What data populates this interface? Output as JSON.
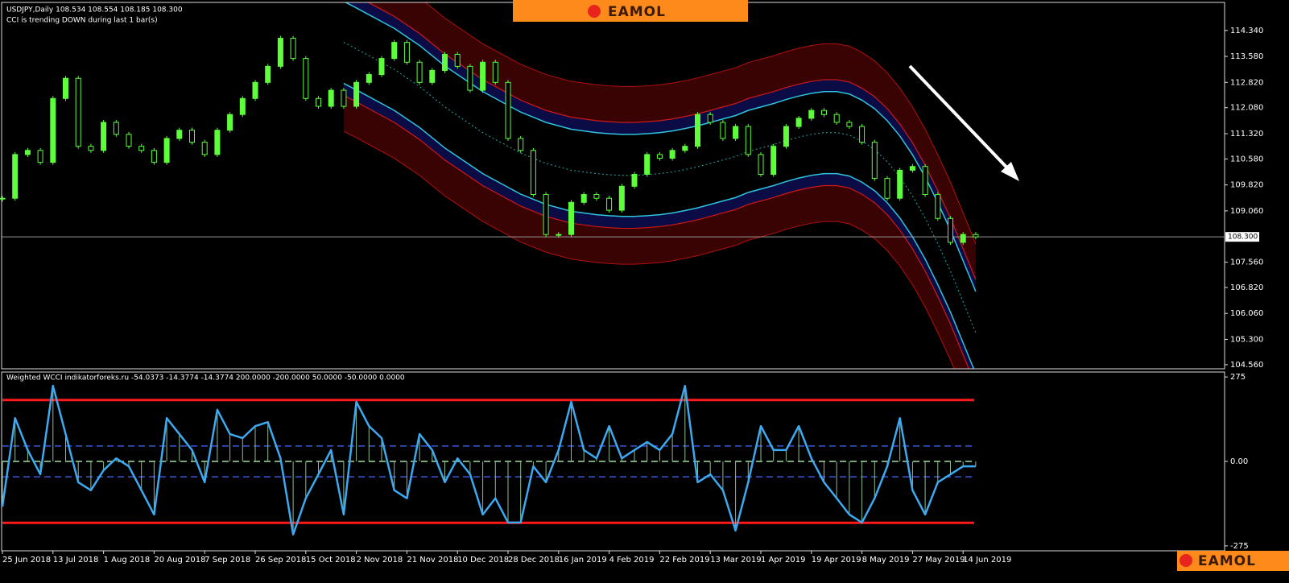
{
  "header": {
    "symbol": "USDJPY,Daily  108.534 108.554 108.185 108.300",
    "signal": "CCI is trending DOWN during last 1 bar(s)"
  },
  "logo": {
    "top": "EAMOL",
    "bottom": "EAMOL"
  },
  "chart_data": [
    {
      "type": "candlestick",
      "color": "#5cff3a",
      "close": [
        109.43,
        110.71,
        110.83,
        110.48,
        112.35,
        112.94,
        110.95,
        110.83,
        111.65,
        111.3,
        110.95,
        110.83,
        110.48,
        111.18,
        111.42,
        111.07,
        110.71,
        111.42,
        111.88,
        112.35,
        112.82,
        113.29,
        114.11,
        113.52,
        112.35,
        112.12,
        112.59,
        112.12,
        112.82,
        113.05,
        113.52,
        113.99,
        113.41,
        112.82,
        113.17,
        113.64,
        113.29,
        112.59,
        113.41,
        112.82,
        111.18,
        110.83,
        109.54,
        108.37,
        108.37,
        109.31,
        109.54,
        109.43,
        109.08,
        109.78,
        110.13,
        110.71,
        110.6,
        110.83,
        110.95,
        111.88,
        111.65,
        111.18,
        111.53,
        110.71,
        110.13,
        110.95,
        111.53,
        111.77,
        112.0,
        111.88,
        111.65,
        111.53,
        111.07,
        110.01,
        109.43,
        110.25,
        110.36,
        109.54,
        108.84,
        108.14,
        108.37,
        108.3
      ],
      "ylim": [
        104.44,
        115.16
      ],
      "yticks": [
        {
          "value": 114.34,
          "label": "114.340"
        },
        {
          "value": 113.58,
          "label": "113.580"
        },
        {
          "value": 112.82,
          "label": "112.820"
        },
        {
          "value": 112.08,
          "label": "112.080"
        },
        {
          "value": 111.32,
          "label": "111.320"
        },
        {
          "value": 110.58,
          "label": "110.580"
        },
        {
          "value": 109.82,
          "label": "109.820"
        },
        {
          "value": 109.06,
          "label": "109.060"
        },
        {
          "value": 107.56,
          "label": "107.560"
        },
        {
          "value": 106.82,
          "label": "106.820"
        },
        {
          "value": 106.06,
          "label": "106.060"
        },
        {
          "value": 105.3,
          "label": "105.300"
        },
        {
          "value": 104.56,
          "label": "104.560"
        }
      ],
      "current_price": {
        "value": 108.3,
        "label": "108.300"
      },
      "channel": {
        "mid": [
          null,
          null,
          null,
          null,
          null,
          null,
          null,
          null,
          null,
          null,
          null,
          null,
          null,
          null,
          null,
          null,
          null,
          null,
          null,
          null,
          null,
          null,
          null,
          null,
          null,
          null,
          null,
          113.99,
          113.8,
          113.6,
          113.4,
          113.2,
          112.95,
          112.7,
          112.4,
          112.1,
          111.85,
          111.6,
          111.35,
          111.15,
          110.95,
          110.75,
          110.6,
          110.45,
          110.35,
          110.25,
          110.2,
          110.15,
          110.12,
          110.1,
          110.1,
          110.12,
          110.15,
          110.2,
          110.27,
          110.35,
          110.45,
          110.55,
          110.65,
          110.8,
          110.9,
          111.0,
          111.12,
          111.22,
          111.3,
          111.35,
          111.35,
          111.28,
          111.1,
          110.85,
          110.5,
          110.05,
          109.5,
          108.85,
          108.1,
          107.3,
          106.4,
          105.5
        ],
        "offsets": [
          1.2,
          1.55,
          2.6
        ]
      }
    },
    {
      "type": "line",
      "title": "Weighted WCCI indikatorforeks.ru -54.0373 -14.3774 -14.3774 200.0000 -200.0000 50.0000 -50.0000 0.0000",
      "categories": [
        "25 Jun 2018",
        null,
        null,
        null,
        "13 Jul 2018",
        null,
        null,
        null,
        "1 Aug 2018",
        null,
        null,
        null,
        "20 Aug 2018",
        null,
        null,
        null,
        "7 Sep 2018",
        null,
        null,
        null,
        "26 Sep 2018",
        null,
        null,
        null,
        "15 Oct 2018",
        null,
        null,
        null,
        "2 Nov 2018",
        null,
        null,
        null,
        "21 Nov 2018",
        null,
        null,
        null,
        "10 Dec 2018",
        null,
        null,
        null,
        "28 Dec 2018",
        null,
        null,
        null,
        "16 Jan 2019",
        null,
        null,
        null,
        "4 Feb 2019",
        null,
        null,
        null,
        "22 Feb 2019",
        null,
        null,
        null,
        "13 Mar 2019",
        null,
        null,
        null,
        "1 Apr 2019",
        null,
        null,
        null,
        "19 Apr 2019",
        null,
        null,
        null,
        "8 May 2019",
        null,
        null,
        null,
        "27 May 2019",
        null,
        null,
        null,
        "14 Jun 2019",
        null
      ],
      "series": [
        {
          "color": "#3ca9f0",
          "values": [
            -147,
            141,
            37,
            -42,
            246,
            89,
            -68,
            -94,
            -29,
            10,
            -16,
            -94,
            -173,
            141,
            89,
            37,
            -68,
            168,
            89,
            76,
            115,
            128,
            10,
            -238,
            -120,
            -42,
            37,
            -173,
            194,
            115,
            76,
            -94,
            -120,
            89,
            37,
            -68,
            10,
            -42,
            -173,
            -120,
            -199,
            -199,
            -16,
            -68,
            37,
            194,
            37,
            10,
            115,
            10,
            37,
            63,
            37,
            89,
            246,
            -68,
            -42,
            -94,
            -225,
            -68,
            115,
            37,
            37,
            115,
            10,
            -68,
            -120,
            -173,
            -199,
            -120,
            -16,
            141,
            -94,
            -173,
            -68,
            -42,
            -16,
            -16
          ]
        }
      ],
      "histogram_color": "#8fbc8f",
      "levels": [
        {
          "value": 200,
          "color": "#ff1a1a"
        },
        {
          "value": -200,
          "color": "#ff1a1a"
        },
        {
          "value": 50,
          "color": "#3a5ad8"
        },
        {
          "value": -50,
          "color": "#3a5ad8"
        },
        {
          "value": 0,
          "color": "#9fdc9f"
        }
      ],
      "ylim": [
        -291,
        291
      ],
      "yticks": [
        275,
        {
          "value": 0,
          "label": "0.00"
        },
        -275
      ]
    }
  ]
}
